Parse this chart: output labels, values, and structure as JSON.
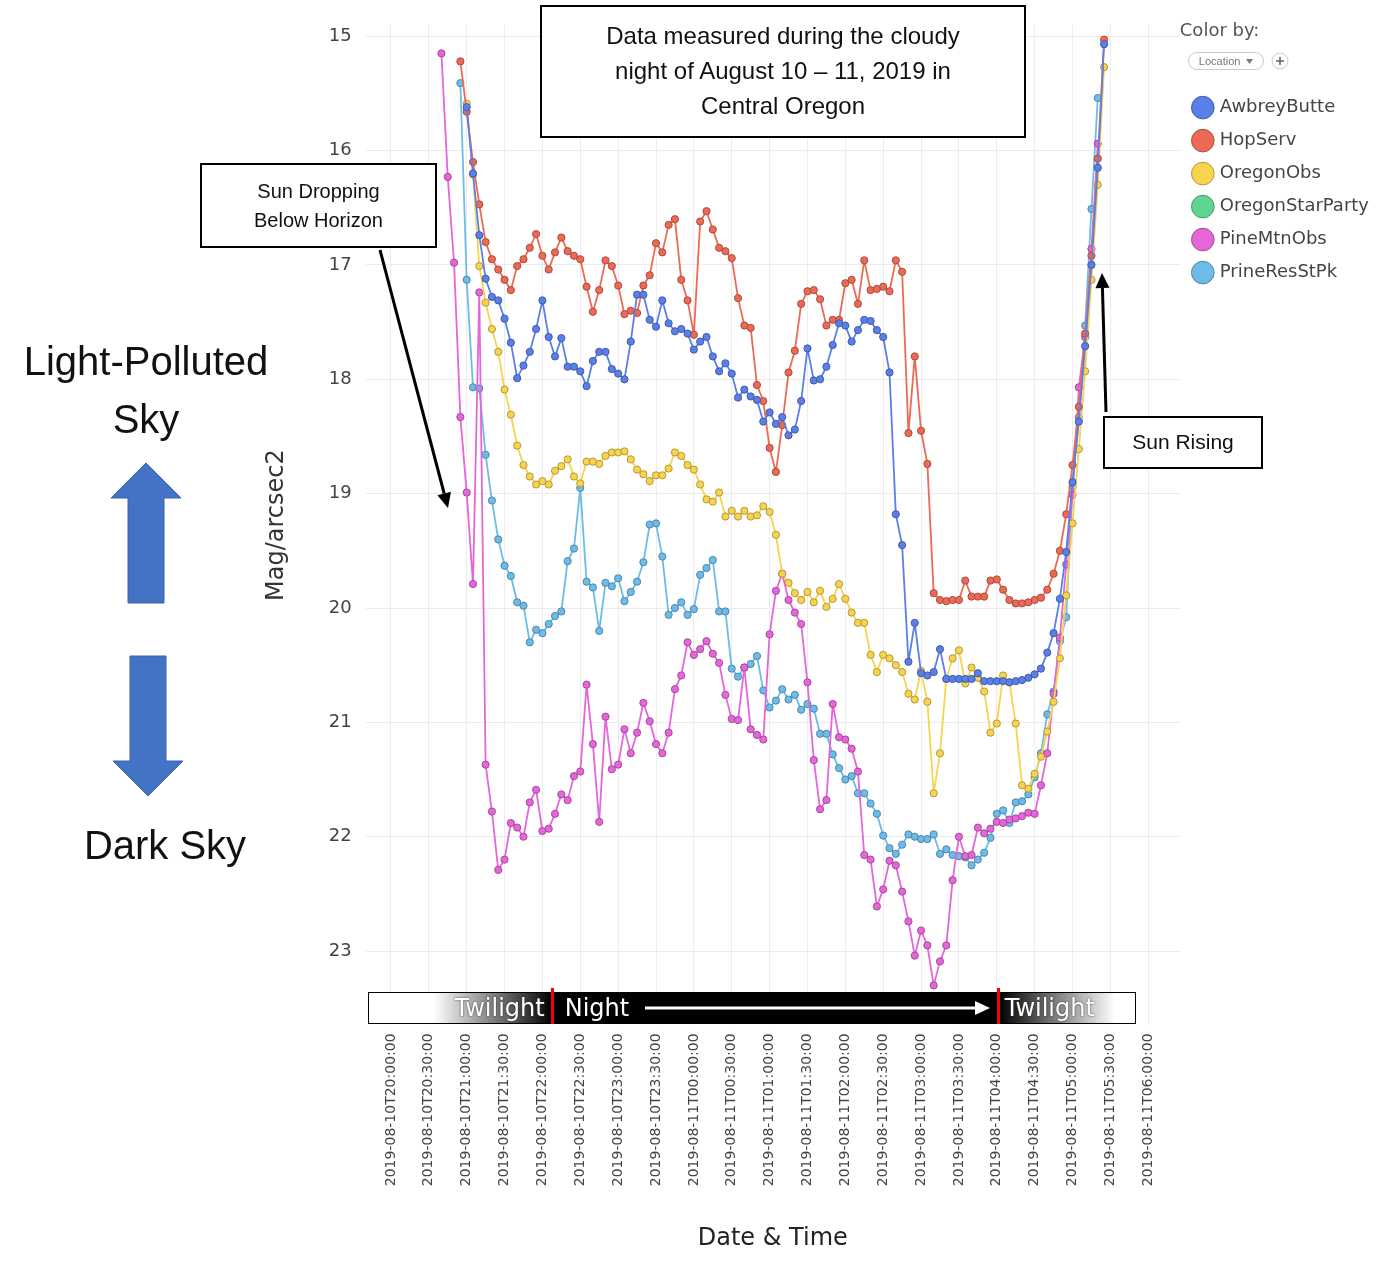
{
  "chart_data": {
    "type": "line",
    "xlabel": "Date & Time",
    "ylabel": "Mag/arcsec2",
    "legend_title": "Color by:",
    "annotations": [
      "Data measured during the cloudy night of August 10 – 11, 2019 in Central Oregon",
      "Sun Dropping Below Horizon",
      "Sun Rising",
      "Light-Polluted Sky",
      "Dark Sky",
      "Location",
      "Twilight",
      "Night",
      "Twilight"
    ],
    "x": [
      "2019-08-10T20:40",
      "2019-08-10T20:45",
      "2019-08-10T20:50",
      "2019-08-10T20:55",
      "2019-08-10T21:00",
      "2019-08-10T21:05",
      "2019-08-10T21:10",
      "2019-08-10T21:15",
      "2019-08-10T21:20",
      "2019-08-10T21:25",
      "2019-08-10T21:30",
      "2019-08-10T21:35",
      "2019-08-10T21:40",
      "2019-08-10T21:45",
      "2019-08-10T21:50",
      "2019-08-10T21:55",
      "2019-08-10T22:00",
      "2019-08-10T22:05",
      "2019-08-10T22:10",
      "2019-08-10T22:15",
      "2019-08-10T22:20",
      "2019-08-10T22:25",
      "2019-08-10T22:30",
      "2019-08-10T22:35",
      "2019-08-10T22:40",
      "2019-08-10T22:45",
      "2019-08-10T22:50",
      "2019-08-10T22:55",
      "2019-08-10T23:00",
      "2019-08-10T23:05",
      "2019-08-10T23:10",
      "2019-08-10T23:15",
      "2019-08-10T23:20",
      "2019-08-10T23:25",
      "2019-08-10T23:30",
      "2019-08-10T23:35",
      "2019-08-10T23:40",
      "2019-08-10T23:45",
      "2019-08-10T23:50",
      "2019-08-10T23:55",
      "2019-08-11T00:00",
      "2019-08-11T00:05",
      "2019-08-11T00:10",
      "2019-08-11T00:15",
      "2019-08-11T00:20",
      "2019-08-11T00:25",
      "2019-08-11T00:30",
      "2019-08-11T00:35",
      "2019-08-11T00:40",
      "2019-08-11T00:45",
      "2019-08-11T00:50",
      "2019-08-11T00:55",
      "2019-08-11T01:00",
      "2019-08-11T01:05",
      "2019-08-11T01:10",
      "2019-08-11T01:15",
      "2019-08-11T01:20",
      "2019-08-11T01:25",
      "2019-08-11T01:30",
      "2019-08-11T01:35",
      "2019-08-11T01:40",
      "2019-08-11T01:45",
      "2019-08-11T01:50",
      "2019-08-11T01:55",
      "2019-08-11T02:00",
      "2019-08-11T02:05",
      "2019-08-11T02:10",
      "2019-08-11T02:15",
      "2019-08-11T02:20",
      "2019-08-11T02:25",
      "2019-08-11T02:30",
      "2019-08-11T02:35",
      "2019-08-11T02:40",
      "2019-08-11T02:45",
      "2019-08-11T02:50",
      "2019-08-11T02:55",
      "2019-08-11T03:00",
      "2019-08-11T03:05",
      "2019-08-11T03:10",
      "2019-08-11T03:15",
      "2019-08-11T03:20",
      "2019-08-11T03:25",
      "2019-08-11T03:30",
      "2019-08-11T03:35",
      "2019-08-11T03:40",
      "2019-08-11T03:45",
      "2019-08-11T03:50",
      "2019-08-11T03:55",
      "2019-08-11T04:00",
      "2019-08-11T04:05",
      "2019-08-11T04:10",
      "2019-08-11T04:15",
      "2019-08-11T04:20",
      "2019-08-11T04:25",
      "2019-08-11T04:30",
      "2019-08-11T04:35",
      "2019-08-11T04:40",
      "2019-08-11T04:45",
      "2019-08-11T04:50",
      "2019-08-11T04:55",
      "2019-08-11T05:00",
      "2019-08-11T05:05",
      "2019-08-11T05:10",
      "2019-08-11T05:15",
      "2019-08-11T05:20",
      "2019-08-11T05:25"
    ],
    "series": [
      {
        "name": "AwbreyButte",
        "color": "#5b7fe8",
        "values": [
          null,
          null,
          null,
          null,
          15.62,
          16.2,
          16.74,
          17.12,
          17.28,
          17.31,
          17.47,
          17.68,
          17.99,
          17.88,
          17.76,
          17.56,
          17.31,
          17.63,
          17.8,
          17.64,
          17.89,
          17.89,
          17.93,
          18.06,
          17.84,
          17.76,
          17.76,
          17.91,
          17.95,
          18.0,
          17.67,
          17.26,
          17.26,
          17.48,
          17.54,
          17.31,
          17.51,
          17.58,
          17.56,
          17.6,
          17.74,
          17.67,
          17.63,
          17.8,
          17.93,
          17.86,
          17.95,
          18.16,
          18.09,
          18.15,
          18.18,
          18.37,
          18.29,
          18.39,
          18.33,
          18.49,
          18.44,
          18.19,
          17.73,
          18.01,
          18.0,
          17.89,
          17.7,
          17.51,
          17.53,
          17.67,
          17.57,
          17.48,
          17.49,
          17.57,
          17.63,
          17.94,
          19.18,
          19.45,
          20.47,
          20.13,
          20.57,
          20.59,
          20.56,
          20.36,
          20.62,
          20.62,
          20.62,
          20.62,
          20.62,
          20.57,
          20.64,
          20.64,
          20.64,
          20.64,
          20.65,
          20.64,
          20.63,
          20.61,
          20.58,
          20.53,
          20.39,
          20.22,
          19.92,
          19.51,
          18.9,
          18.37,
          17.71,
          17.0,
          16.15,
          15.07
        ]
      },
      {
        "name": "HopServ",
        "color": "#ec6a55",
        "values": [
          null,
          null,
          null,
          15.22,
          15.66,
          16.1,
          16.47,
          16.8,
          16.95,
          17.04,
          17.13,
          17.22,
          17.01,
          16.95,
          16.85,
          16.73,
          16.92,
          17.04,
          16.89,
          16.76,
          16.88,
          16.92,
          16.95,
          17.19,
          17.41,
          17.22,
          16.96,
          17.01,
          17.18,
          17.43,
          17.4,
          17.42,
          17.18,
          17.09,
          16.81,
          16.89,
          16.65,
          16.6,
          17.13,
          17.31,
          17.61,
          16.62,
          16.53,
          16.69,
          16.85,
          16.88,
          16.94,
          17.29,
          17.53,
          17.55,
          18.05,
          18.19,
          18.6,
          18.81,
          18.4,
          17.94,
          17.75,
          17.34,
          17.23,
          17.22,
          17.3,
          17.53,
          17.48,
          17.48,
          17.16,
          17.13,
          17.34,
          16.96,
          17.22,
          17.21,
          17.19,
          17.23,
          16.96,
          17.06,
          18.47,
          17.8,
          18.45,
          18.74,
          19.87,
          19.93,
          19.94,
          19.93,
          19.93,
          19.76,
          19.9,
          19.9,
          19.9,
          19.76,
          19.75,
          19.84,
          19.93,
          19.96,
          19.96,
          19.95,
          19.93,
          19.91,
          19.84,
          19.7,
          19.5,
          19.18,
          18.75,
          18.24,
          17.6,
          16.92,
          16.07,
          15.03
        ]
      },
      {
        "name": "OregonObs",
        "color": "#f8d34e",
        "values": [
          null,
          null,
          null,
          null,
          15.59,
          16.21,
          17.01,
          17.33,
          17.56,
          17.76,
          18.09,
          18.31,
          18.58,
          18.75,
          18.85,
          18.92,
          18.89,
          18.92,
          18.8,
          18.76,
          18.7,
          18.85,
          18.91,
          18.72,
          18.72,
          18.74,
          18.67,
          18.64,
          18.64,
          18.63,
          18.7,
          18.79,
          18.83,
          18.89,
          18.84,
          18.84,
          18.78,
          18.64,
          18.67,
          18.75,
          18.79,
          18.92,
          19.05,
          19.07,
          18.99,
          19.2,
          19.15,
          19.2,
          19.15,
          19.2,
          19.19,
          19.11,
          19.16,
          19.36,
          19.7,
          19.78,
          19.87,
          19.93,
          19.86,
          19.95,
          19.85,
          19.99,
          19.92,
          19.79,
          19.92,
          20.04,
          20.13,
          20.13,
          20.41,
          20.56,
          20.41,
          20.44,
          20.5,
          20.56,
          20.75,
          20.8,
          20.55,
          20.82,
          21.62,
          21.27,
          20.62,
          20.44,
          20.37,
          20.66,
          20.52,
          20.61,
          20.73,
          21.09,
          21.01,
          20.59,
          20.65,
          21.01,
          21.55,
          21.58,
          21.45,
          21.3,
          21.08,
          20.82,
          20.44,
          19.89,
          19.26,
          18.61,
          17.93,
          17.13,
          16.3,
          15.27
        ]
      },
      {
        "name": "OregonStarParty",
        "color": "#5fd68f",
        "values": [
          null,
          null,
          null,
          null,
          null,
          null,
          null,
          null,
          null,
          null,
          null,
          null,
          null,
          null,
          null,
          null,
          null,
          null,
          null,
          null,
          null,
          null,
          null,
          null,
          null,
          null,
          null,
          null,
          null,
          null,
          null,
          null,
          null,
          null,
          null,
          null,
          null,
          null,
          null,
          null,
          null,
          null,
          null,
          null,
          null,
          null,
          null,
          null,
          null,
          null,
          null,
          null,
          null,
          null,
          null,
          null,
          null,
          null,
          null,
          null,
          null,
          null,
          null,
          null,
          null,
          null,
          null,
          null,
          null,
          null,
          null,
          null,
          null,
          null,
          null,
          null,
          null,
          null,
          null,
          null,
          null,
          null,
          null,
          null,
          null,
          null,
          null,
          null,
          null,
          null,
          null,
          null,
          null,
          null,
          null,
          null,
          null,
          null,
          null,
          null,
          null,
          null,
          null,
          null,
          null,
          null
        ]
      },
      {
        "name": "PineMtnObs",
        "color": "#e466d8",
        "values": [
          15.15,
          16.23,
          16.98,
          18.33,
          18.99,
          19.79,
          17.24,
          21.37,
          21.78,
          22.29,
          22.2,
          21.88,
          21.92,
          22.0,
          21.7,
          21.59,
          21.95,
          21.93,
          21.8,
          21.63,
          21.68,
          21.47,
          21.43,
          20.67,
          21.19,
          21.87,
          20.95,
          21.41,
          21.37,
          21.06,
          21.27,
          21.09,
          20.83,
          20.99,
          21.19,
          21.27,
          21.09,
          20.71,
          20.59,
          20.3,
          20.41,
          20.36,
          20.29,
          20.4,
          20.48,
          20.76,
          20.97,
          20.98,
          20.52,
          21.06,
          21.11,
          21.15,
          20.23,
          19.85,
          19.7,
          19.93,
          20.04,
          20.14,
          20.65,
          21.33,
          21.76,
          21.68,
          20.84,
          21.13,
          21.15,
          21.23,
          21.43,
          22.16,
          22.2,
          22.61,
          22.46,
          22.21,
          22.25,
          22.48,
          22.74,
          23.04,
          22.82,
          22.95,
          23.3,
          23.09,
          22.95,
          22.38,
          22.0,
          22.17,
          22.16,
          21.92,
          21.97,
          21.93,
          21.87,
          21.88,
          21.85,
          21.84,
          21.82,
          21.79,
          21.8,
          21.55,
          21.27,
          20.75,
          20.26,
          19.62,
          19.01,
          18.07,
          17.63,
          16.86,
          15.94,
          null
        ]
      },
      {
        "name": "PrineResStPk",
        "color": "#6cbbe9",
        "values": [
          null,
          null,
          null,
          15.41,
          17.13,
          18.07,
          18.08,
          18.66,
          19.06,
          19.4,
          19.63,
          19.72,
          19.95,
          19.98,
          20.3,
          20.19,
          20.22,
          20.14,
          20.07,
          20.03,
          19.59,
          19.48,
          18.95,
          19.77,
          19.82,
          20.2,
          19.78,
          19.81,
          19.74,
          19.94,
          19.86,
          19.77,
          19.6,
          19.27,
          19.26,
          19.55,
          20.06,
          20.0,
          19.95,
          20.06,
          20.01,
          19.71,
          19.65,
          19.58,
          20.03,
          20.03,
          20.53,
          20.6,
          20.52,
          20.49,
          20.42,
          20.72,
          20.87,
          20.81,
          20.71,
          20.8,
          20.76,
          20.89,
          20.84,
          20.88,
          21.1,
          21.1,
          21.28,
          21.4,
          21.5,
          21.47,
          21.62,
          21.62,
          21.71,
          21.8,
          21.99,
          22.1,
          22.15,
          22.07,
          21.98,
          22.0,
          22.02,
          22.02,
          21.98,
          22.15,
          22.11,
          22.16,
          22.17,
          22.18,
          22.25,
          22.2,
          22.14,
          22.01,
          21.8,
          21.77,
          21.88,
          21.7,
          21.69,
          21.63,
          21.48,
          21.27,
          20.93,
          20.73,
          20.29,
          20.08,
          18.94,
          18.33,
          17.53,
          16.51,
          15.54,
          null
        ]
      }
    ],
    "xlim": [
      "2019-08-10T19:40",
      "2019-08-11T06:25"
    ],
    "xticks": [
      {
        "value": "2019-08-10T20:00",
        "label": "2019-08-10T20:00:00"
      },
      {
        "value": "2019-08-10T20:30",
        "label": "2019-08-10T20:30:00"
      },
      {
        "value": "2019-08-10T21:00",
        "label": "2019-08-10T21:00:00"
      },
      {
        "value": "2019-08-10T21:30",
        "label": "2019-08-10T21:30:00"
      },
      {
        "value": "2019-08-10T22:00",
        "label": "2019-08-10T22:00:00"
      },
      {
        "value": "2019-08-10T22:30",
        "label": "2019-08-10T22:30:00"
      },
      {
        "value": "2019-08-10T23:00",
        "label": "2019-08-10T23:00:00"
      },
      {
        "value": "2019-08-10T23:30",
        "label": "2019-08-10T23:30:00"
      },
      {
        "value": "2019-08-11T00:00",
        "label": "2019-08-11T00:00:00"
      },
      {
        "value": "2019-08-11T00:30",
        "label": "2019-08-11T00:30:00"
      },
      {
        "value": "2019-08-11T01:00",
        "label": "2019-08-11T01:00:00"
      },
      {
        "value": "2019-08-11T01:30",
        "label": "2019-08-11T01:30:00"
      },
      {
        "value": "2019-08-11T02:00",
        "label": "2019-08-11T02:00:00"
      },
      {
        "value": "2019-08-11T02:30",
        "label": "2019-08-11T02:30:00"
      },
      {
        "value": "2019-08-11T03:00",
        "label": "2019-08-11T03:00:00"
      },
      {
        "value": "2019-08-11T03:30",
        "label": "2019-08-11T03:30:00"
      },
      {
        "value": "2019-08-11T04:00",
        "label": "2019-08-11T04:00:00"
      },
      {
        "value": "2019-08-11T04:30",
        "label": "2019-08-11T04:30:00"
      },
      {
        "value": "2019-08-11T05:00",
        "label": "2019-08-11T05:00:00"
      },
      {
        "value": "2019-08-11T05:30",
        "label": "2019-08-11T05:30:00"
      },
      {
        "value": "2019-08-11T06:00",
        "label": "2019-08-11T06:00:00"
      }
    ],
    "ylim": [
      23.65,
      14.9
    ],
    "yticks": [
      15,
      16,
      17,
      18,
      19,
      20,
      21,
      22,
      23
    ],
    "grid": true,
    "legend": "top right",
    "marker": "circle"
  }
}
